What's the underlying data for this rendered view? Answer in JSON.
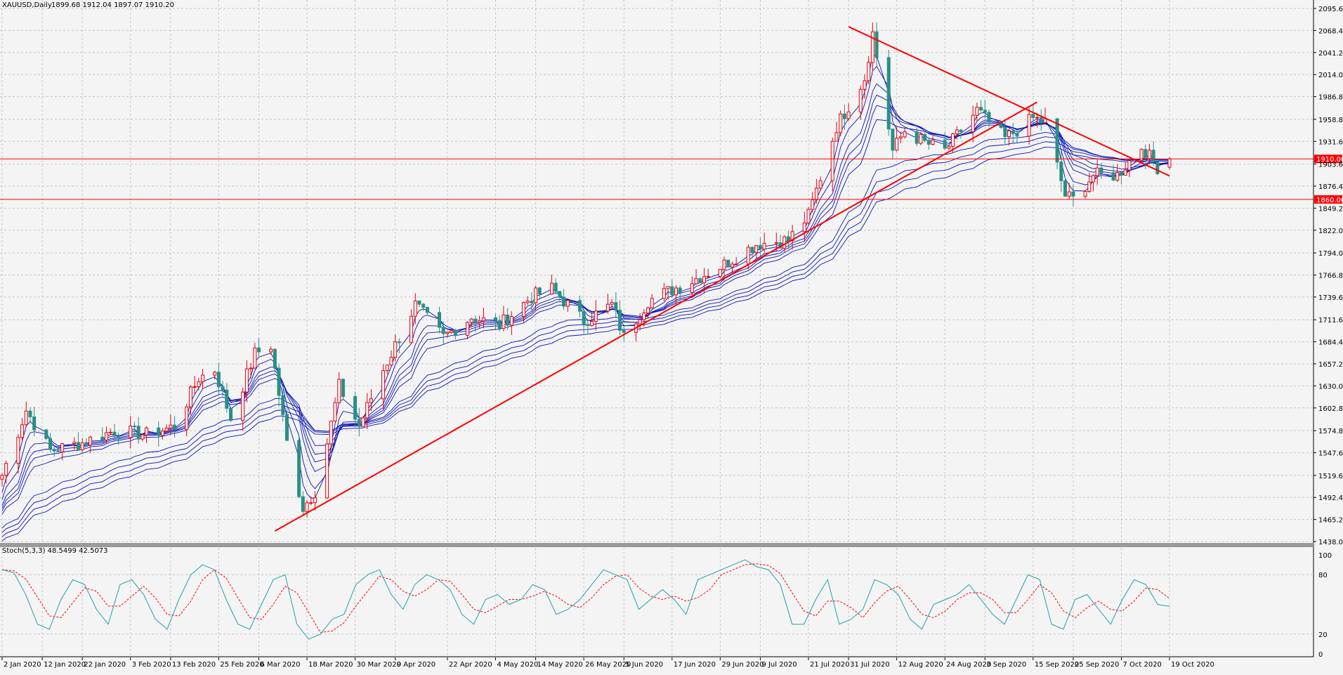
{
  "header": {
    "symbol": "XAUUSD,Daily",
    "ohlc": "1899.68 1912.04 1897.07 1910.20"
  },
  "indicator": {
    "label": "Stoch(5,3,3) 48.5499 42.5073",
    "levels": [
      "100",
      "80",
      "20",
      "0"
    ]
  },
  "price_tags": [
    "1910.00",
    "1860.00"
  ],
  "colors": {
    "background": "#f4f4f4",
    "grid": "#c8c8c8",
    "bull_candle": "#e8000b",
    "bear_candle": "#2a8f86",
    "moving_averages": "#0a14b4",
    "trendlines": "#ff0000",
    "stoch_main": "#20a0a8",
    "stoch_signal": "#ff0000",
    "tag_fill": "#ff0000"
  },
  "chart_data": [
    {
      "type": "candlestick",
      "title": "XAUUSD,Daily",
      "ohlc_last": {
        "open": 1899.68,
        "high": 1912.04,
        "low": 1897.07,
        "close": 1910.2
      },
      "ylim": [
        1438.0,
        2095.6
      ],
      "y_tick_labels": [
        "2095.60",
        "2068.40",
        "2041.20",
        "2014.00",
        "1986.80",
        "1958.80",
        "1931.60",
        "1903.60",
        "1876.40",
        "1849.20",
        "1822.00",
        "1794.00",
        "1766.80",
        "1739.60",
        "1711.60",
        "1684.40",
        "1657.20",
        "1630.00",
        "1602.80",
        "1574.80",
        "1547.60",
        "1519.60",
        "1492.40",
        "1465.20",
        "1438.00"
      ],
      "x_tick_labels": [
        "2 Jan 2020",
        "12 Jan 2020",
        "22 Jan 2020",
        "3 Feb 2020",
        "13 Feb 2020",
        "25 Feb 2020",
        "6 Mar 2020",
        "18 Mar 2020",
        "30 Mar 2020",
        "9 Apr 2020",
        "22 Apr 2020",
        "4 May 2020",
        "14 May 2020",
        "26 May 2020",
        "5 Jun 2020",
        "17 Jun 2020",
        "29 Jun 2020",
        "9 Jul 2020",
        "21 Jul 2020",
        "31 Jul 2020",
        "12 Aug 2020",
        "24 Aug 2020",
        "3 Sep 2020",
        "15 Sep 2020",
        "25 Sep 2020",
        "7 Oct 2020",
        "19 Oct 2020"
      ],
      "horizontal_lines": [
        1910.0,
        1860.0
      ],
      "trendlines": [
        {
          "from": {
            "date": "10 Mar 2020",
            "price": 1451
          },
          "to": {
            "date": "16 Sep 2020",
            "price": 1980
          }
        },
        {
          "from": {
            "date": "31 Jul 2020",
            "price": 2073
          },
          "to": {
            "date": "19 Oct 2020",
            "price": 1889
          }
        }
      ],
      "moving_average_count": 10,
      "path_anchors": [
        [
          "2 Jan 2020",
          1520
        ],
        [
          "8 Jan 2020",
          1600
        ],
        [
          "14 Jan 2020",
          1550
        ],
        [
          "22 Jan 2020",
          1560
        ],
        [
          "30 Jan 2020",
          1575
        ],
        [
          "7 Feb 2020",
          1570
        ],
        [
          "14 Feb 2020",
          1580
        ],
        [
          "20 Feb 2020",
          1640
        ],
        [
          "24 Feb 2020",
          1650
        ],
        [
          "28 Feb 2020",
          1590
        ],
        [
          "5 Mar 2020",
          1670
        ],
        [
          "9 Mar 2020",
          1680
        ],
        [
          "13 Mar 2020",
          1560
        ],
        [
          "17 Mar 2020",
          1480
        ],
        [
          "20 Mar 2020",
          1500
        ],
        [
          "23 Mar 2020",
          1560
        ],
        [
          "26 Mar 2020",
          1630
        ],
        [
          "31 Mar 2020",
          1580
        ],
        [
          "6 Apr 2020",
          1650
        ],
        [
          "14 Apr 2020",
          1730
        ],
        [
          "21 Apr 2020",
          1690
        ],
        [
          "28 Apr 2020",
          1715
        ],
        [
          "5 May 2020",
          1705
        ],
        [
          "13 May 2020",
          1740
        ],
        [
          "18 May 2020",
          1750
        ],
        [
          "26 May 2020",
          1710
        ],
        [
          "2 Jun 2020",
          1730
        ],
        [
          "5 Jun 2020",
          1690
        ],
        [
          "11 Jun 2020",
          1735
        ],
        [
          "22 Jun 2020",
          1760
        ],
        [
          "30 Jun 2020",
          1780
        ],
        [
          "8 Jul 2020",
          1805
        ],
        [
          "16 Jul 2020",
          1810
        ],
        [
          "21 Jul 2020",
          1840
        ],
        [
          "28 Jul 2020",
          1950
        ],
        [
          "4 Aug 2020",
          2010
        ],
        [
          "6 Aug 2020",
          2065
        ],
        [
          "11 Aug 2020",
          1920
        ],
        [
          "14 Aug 2020",
          1945
        ],
        [
          "19 Aug 2020",
          1930
        ],
        [
          "24 Aug 2020",
          1920
        ],
        [
          "1 Sep 2020",
          1970
        ],
        [
          "8 Sep 2020",
          1935
        ],
        [
          "15 Sep 2020",
          1960
        ],
        [
          "18 Sep 2020",
          1955
        ],
        [
          "23 Sep 2020",
          1865
        ],
        [
          "25 Sep 2020",
          1860
        ],
        [
          "30 Sep 2020",
          1890
        ],
        [
          "6 Oct 2020",
          1890
        ],
        [
          "12 Oct 2020",
          1925
        ],
        [
          "16 Oct 2020",
          1900
        ],
        [
          "19 Oct 2020",
          1910
        ]
      ]
    },
    {
      "type": "line",
      "title": "Stoch(5,3,3) 48.5499 42.5073",
      "ylim": [
        0,
        100
      ],
      "levels": [
        20,
        80
      ],
      "series": [
        {
          "name": "",
          "values": [
            85,
            82,
            60,
            30,
            25,
            55,
            75,
            70,
            45,
            30,
            70,
            75,
            60,
            35,
            25,
            55,
            80,
            90,
            85,
            55,
            30,
            25,
            50,
            75,
            80,
            30,
            15,
            20,
            35,
            40,
            70,
            80,
            85,
            60,
            45,
            70,
            80,
            75,
            65,
            40,
            30,
            55,
            60,
            50,
            55,
            70,
            65,
            40,
            45,
            55,
            70,
            85,
            80,
            75,
            45,
            55,
            65,
            55,
            40,
            75,
            80,
            85,
            90,
            95,
            88,
            85,
            70,
            30,
            30,
            55,
            75,
            30,
            35,
            45,
            75,
            70,
            60,
            35,
            25,
            50,
            55,
            60,
            70,
            55,
            40,
            30,
            55,
            80,
            75,
            30,
            25,
            55,
            60,
            45,
            30,
            55,
            75,
            70,
            50,
            48
          ]
        }
      ]
    }
  ]
}
